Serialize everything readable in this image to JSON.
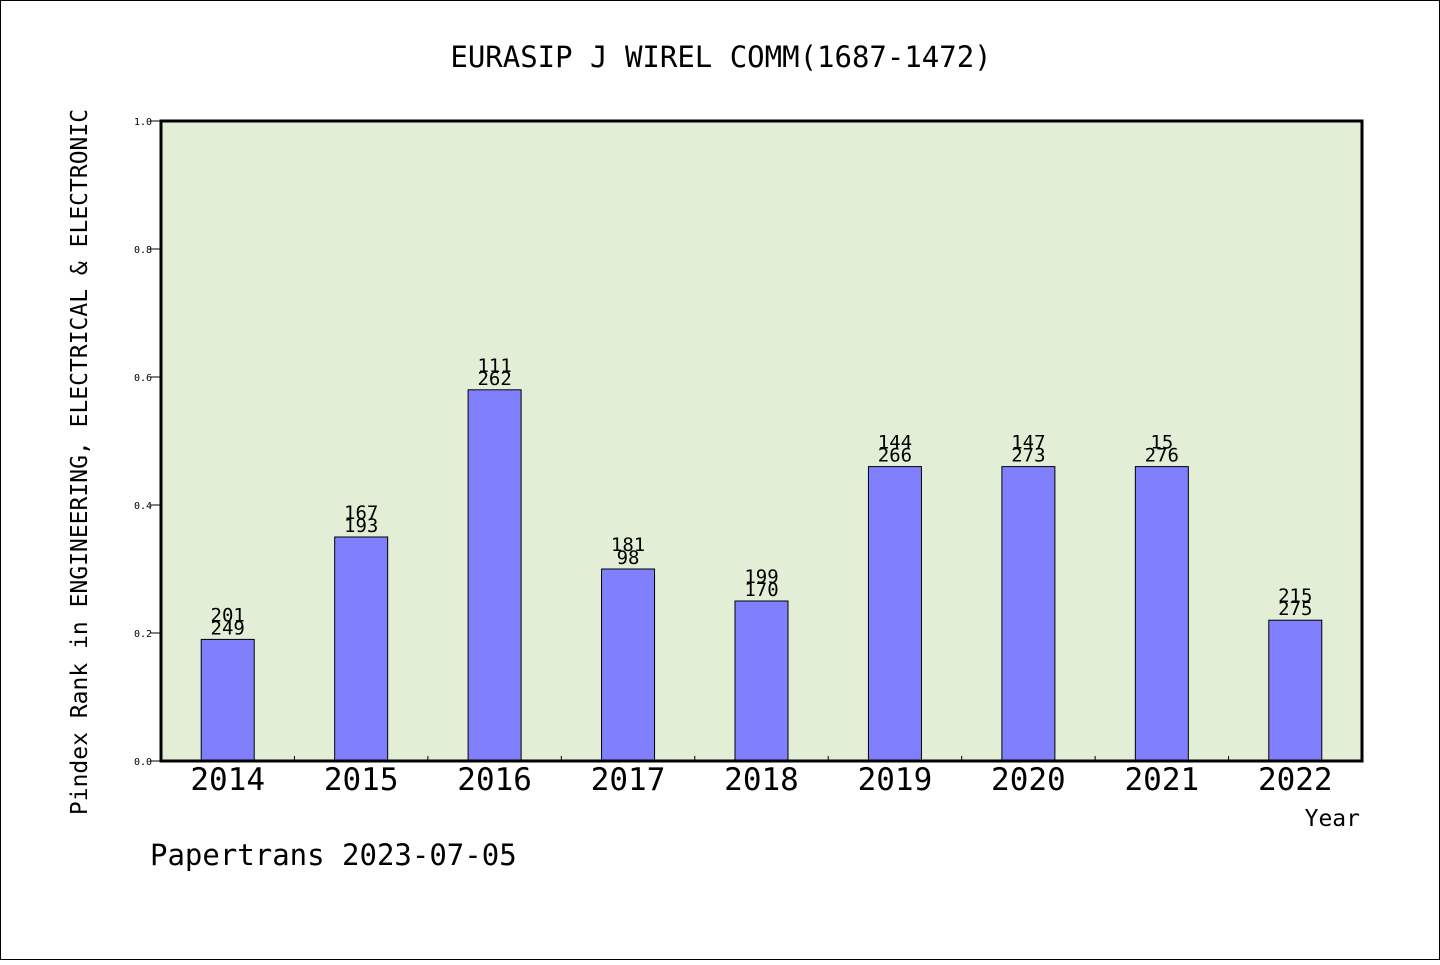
{
  "footer": {
    "credit": "Papertrans 2023-07-05"
  },
  "chart_data": {
    "type": "bar",
    "title": "EURASIP J WIREL COMM(1687-1472)",
    "xlabel": "Year",
    "ylabel": "Pindex Rank in ENGINEERING, ELECTRICAL & ELECTRONIC",
    "categories": [
      "2014",
      "2015",
      "2016",
      "2017",
      "2018",
      "2019",
      "2020",
      "2021",
      "2022"
    ],
    "values": [
      0.19,
      0.35,
      0.58,
      0.3,
      0.25,
      0.46,
      0.46,
      0.46,
      0.22
    ],
    "label_top": [
      "201",
      "167",
      "111",
      "181",
      "199",
      "144",
      "147",
      "15",
      "215"
    ],
    "label_bottom": [
      "249",
      "193",
      "262",
      "98",
      "170",
      "266",
      "273",
      "276",
      "275"
    ],
    "ylim": [
      0,
      1.0
    ],
    "yticks": [
      "0.0",
      "0.2",
      "0.4",
      "0.6",
      "0.8",
      "1.0"
    ],
    "grid": false,
    "colors": {
      "plot_background": "#e2efd6",
      "bar_fill": "#8080ff",
      "bar_stroke": "#000000"
    }
  }
}
